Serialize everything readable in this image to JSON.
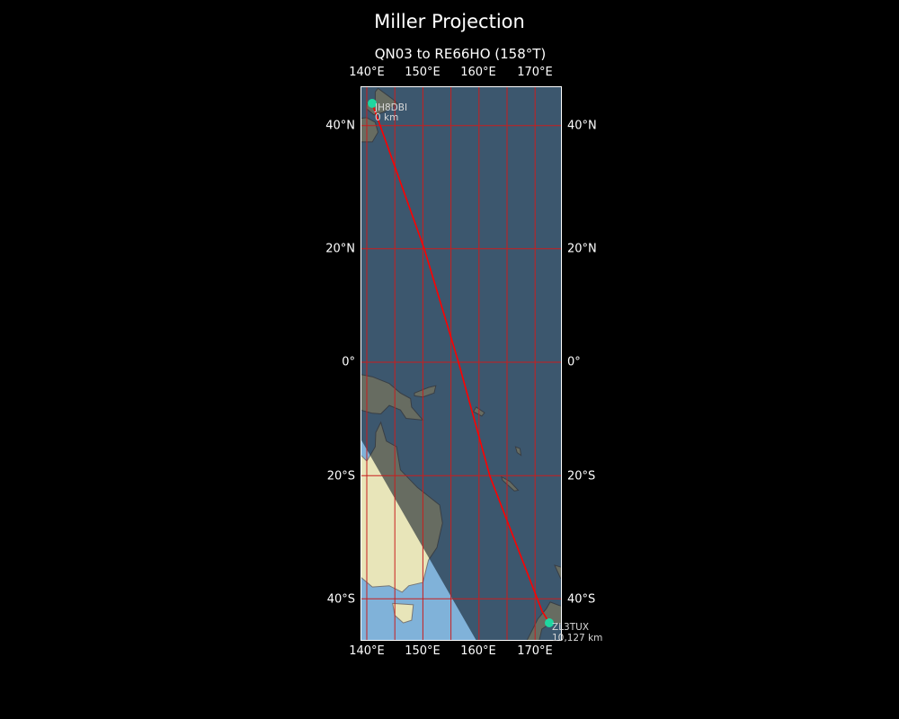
{
  "title": "Miller Projection",
  "subtitle": "QN03 to RE66HO (158°T)",
  "axes": {
    "lon_ticks": [
      "140°E",
      "150°E",
      "160°E",
      "170°E"
    ],
    "lat_ticks": [
      "40°N",
      "20°N",
      "0°",
      "20°S",
      "40°S"
    ]
  },
  "stations": [
    {
      "call": "JH8DBI",
      "distance": "0 km"
    },
    {
      "call": "ZL3TUX",
      "distance": "10,127 km"
    }
  ],
  "colors": {
    "path": "#ff0000",
    "marker": "#1fd6a0",
    "grid": "#c81e1e",
    "ocean_day": "#80b2d9",
    "land_day": "#e8e5b9"
  }
}
